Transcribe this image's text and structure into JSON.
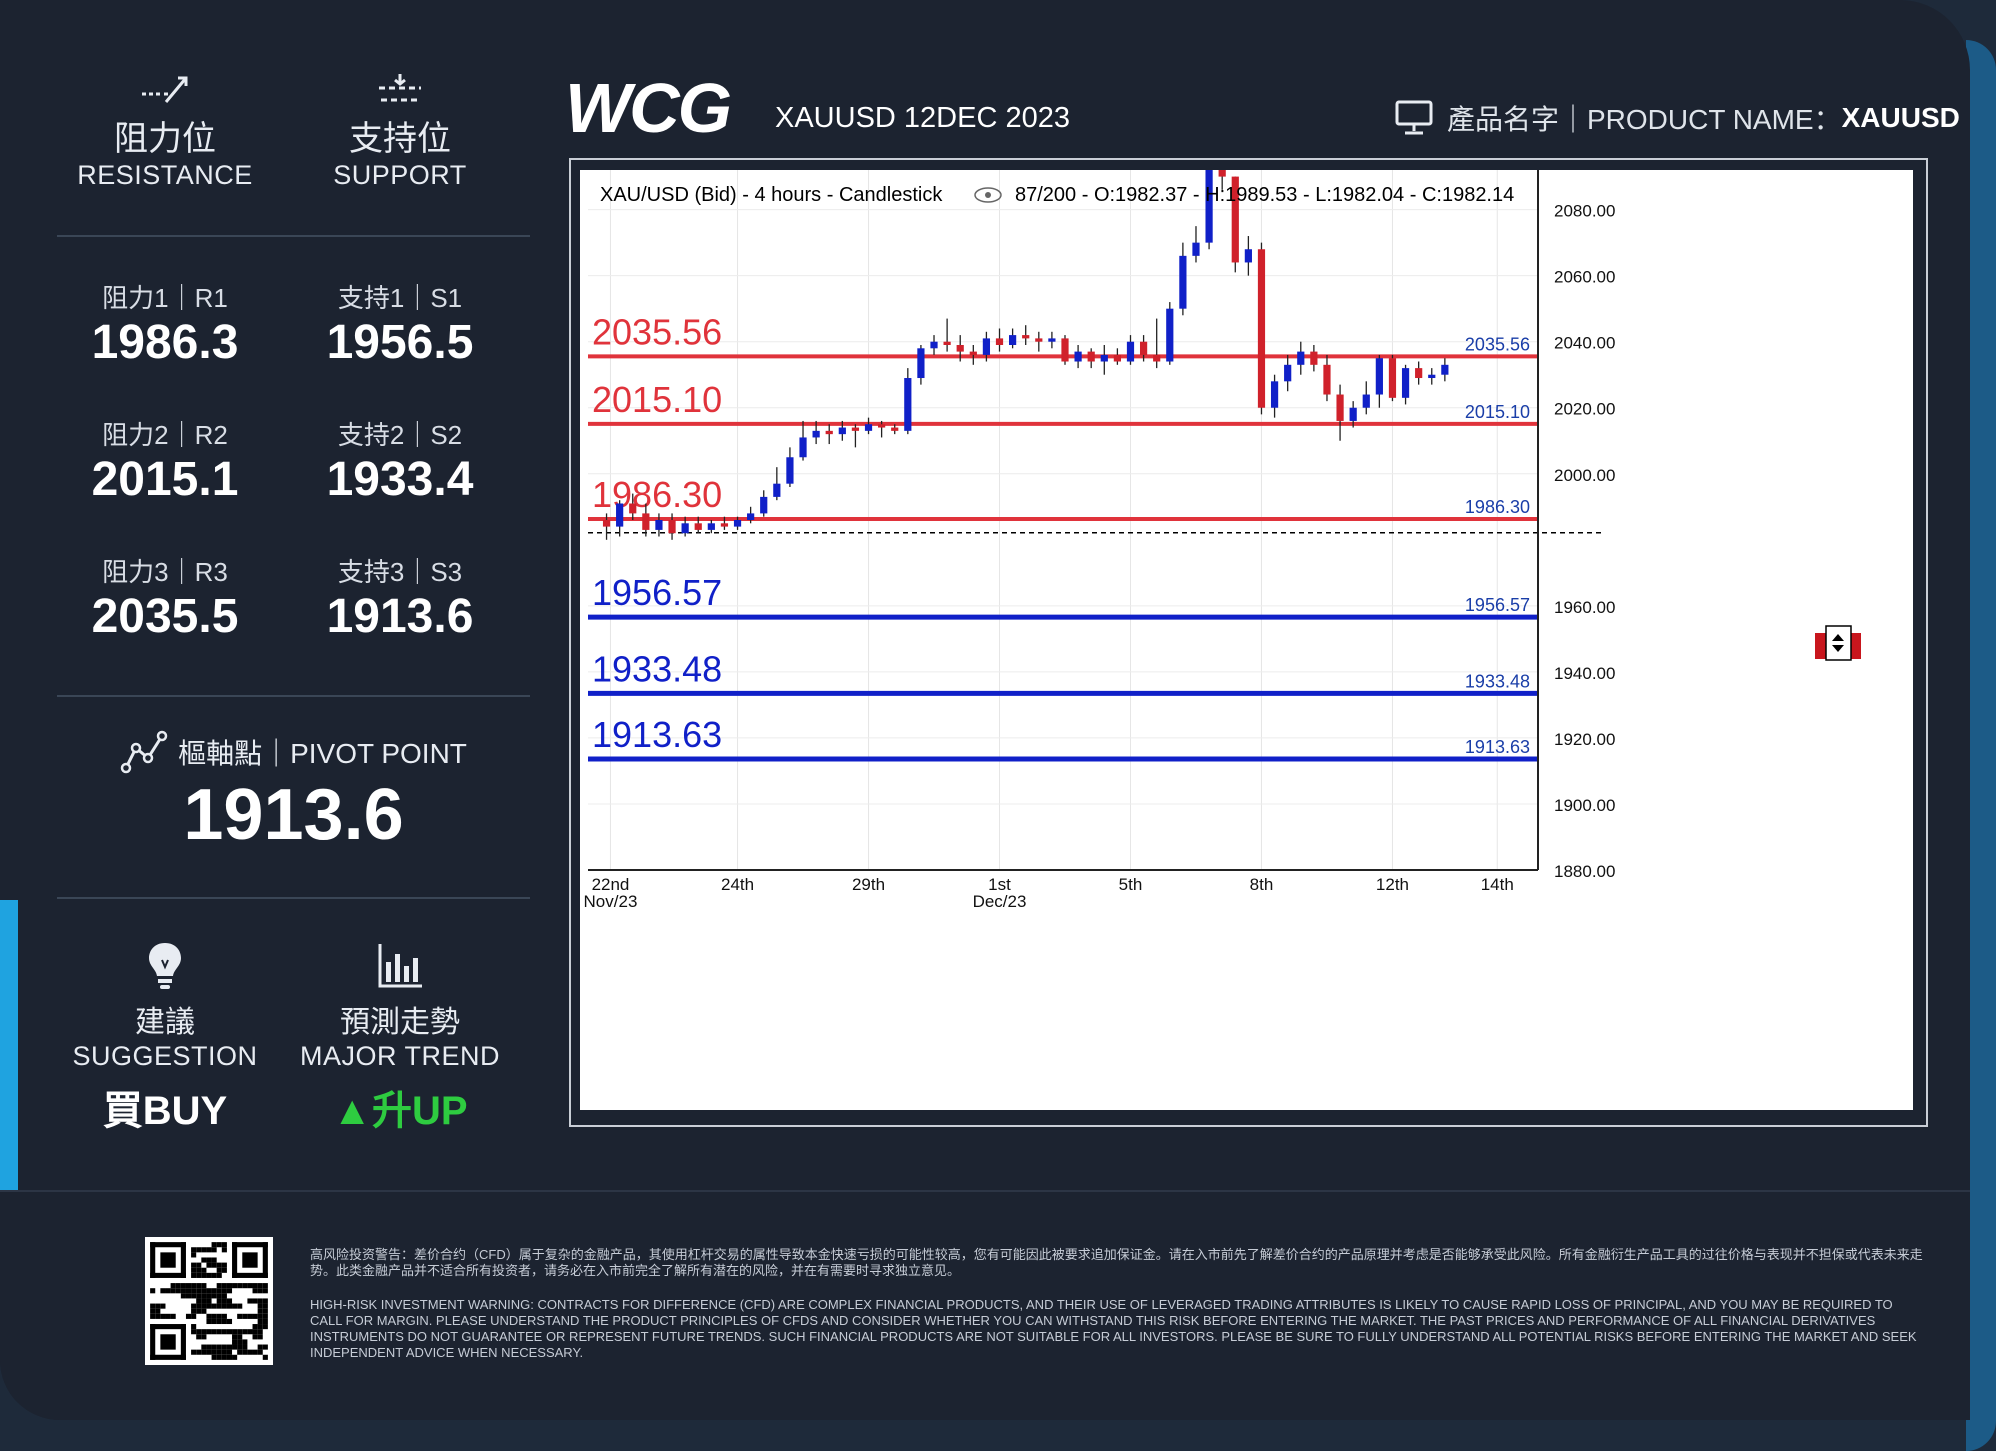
{
  "brand": {
    "logo": "WCG"
  },
  "header": {
    "title": "XAUUSD 12DEC 2023",
    "product_label": "產品名字｜PRODUCT NAME：",
    "product_value": "XAUUSD",
    "monitor_icon": "monitor-icon"
  },
  "left_panel": {
    "resistance": {
      "icon": "resistance-icon",
      "cn": "阻力位",
      "en": "RESISTANCE"
    },
    "support": {
      "icon": "support-icon",
      "cn": "支持位",
      "en": "SUPPORT"
    },
    "levels": [
      {
        "r_label": "阻力1｜R1",
        "r_value": "1986.3",
        "s_label": "支持1｜S1",
        "s_value": "1956.5"
      },
      {
        "r_label": "阻力2｜R2",
        "r_value": "2015.1",
        "s_label": "支持2｜S2",
        "s_value": "1933.4"
      },
      {
        "r_label": "阻力3｜R3",
        "r_value": "2035.5",
        "s_label": "支持3｜S3",
        "s_value": "1913.6"
      }
    ],
    "pivot": {
      "icon": "pivot-chart-icon",
      "label": "樞軸點｜PIVOT POINT",
      "value": "1913.6"
    },
    "suggestion": {
      "icon": "lightbulb-icon",
      "cn": "建議",
      "en": "SUGGESTION",
      "value": "買BUY"
    },
    "trend": {
      "icon": "bar-chart-icon",
      "cn": "預測走勢",
      "en": "MAJOR TREND",
      "value": "▲升UP",
      "color": "#2ecc40"
    }
  },
  "chart_data": {
    "type": "candlestick",
    "title": "XAU/USD (Bid) - 4 hours - Candlestick",
    "info": "87/200 - O:1982.37 - H:1989.53 - L:1982.04 - C:1982.14",
    "ylim": [
      1880,
      2092
    ],
    "yticks": [
      "2080.00",
      "2060.00",
      "2040.00",
      "2020.00",
      "2000.00",
      "1960.00",
      "1940.00",
      "1920.00",
      "1900.00",
      "1880.00"
    ],
    "x_ticks": [
      {
        "label": "22nd",
        "sub": "Nov/23",
        "idx": 0.3
      },
      {
        "label": "24th",
        "sub": "",
        "idx": 10
      },
      {
        "label": "29th",
        "sub": "",
        "idx": 20
      },
      {
        "label": "1st",
        "sub": "Dec/23",
        "idx": 30
      },
      {
        "label": "5th",
        "sub": "",
        "idx": 40
      },
      {
        "label": "8th",
        "sub": "",
        "idx": 50
      },
      {
        "label": "12th",
        "sub": "",
        "idx": 60
      },
      {
        "label": "14th",
        "sub": "",
        "idx": 68
      }
    ],
    "resistance_lines": [
      {
        "value": 2035.56,
        "label": "2035.56",
        "color": "#e0333b"
      },
      {
        "value": 2015.1,
        "label": "2015.10",
        "color": "#e0333b"
      },
      {
        "value": 1986.3,
        "label": "1986.30",
        "color": "#e0333b"
      }
    ],
    "support_lines": [
      {
        "value": 1956.57,
        "label": "1956.57",
        "color": "#1020c8"
      },
      {
        "value": 1933.48,
        "label": "1933.48",
        "color": "#1020c8"
      },
      {
        "value": 1913.63,
        "label": "1913.63",
        "color": "#1020c8"
      }
    ],
    "current_price": 1982.14,
    "candles": [
      [
        1986,
        1984,
        1988,
        1980
      ],
      [
        1984,
        1991,
        1992,
        1981
      ],
      [
        1991,
        1988,
        1994,
        1986
      ],
      [
        1988,
        1983,
        1991,
        1981
      ],
      [
        1983,
        1986,
        1988,
        1981
      ],
      [
        1986,
        1982,
        1988,
        1980
      ],
      [
        1982,
        1985,
        1987,
        1981
      ],
      [
        1985,
        1983,
        1987,
        1982
      ],
      [
        1983,
        1985,
        1986,
        1982
      ],
      [
        1985,
        1984,
        1987,
        1983
      ],
      [
        1984,
        1986,
        1987,
        1983
      ],
      [
        1986,
        1988,
        1990,
        1985
      ],
      [
        1988,
        1993,
        1995,
        1987
      ],
      [
        1993,
        1997,
        2002,
        1992
      ],
      [
        1997,
        2005,
        2008,
        1996
      ],
      [
        2005,
        2011,
        2016,
        2004
      ],
      [
        2011,
        2013,
        2016,
        2009
      ],
      [
        2013,
        2012,
        2015,
        2009
      ],
      [
        2012,
        2014,
        2016,
        2010
      ],
      [
        2014,
        2013,
        2015,
        2008
      ],
      [
        2013,
        2015,
        2017,
        2012
      ],
      [
        2015,
        2014,
        2016,
        2011
      ],
      [
        2014,
        2013,
        2015,
        2012
      ],
      [
        2013,
        2029,
        2032,
        2012
      ],
      [
        2029,
        2038,
        2039,
        2027
      ],
      [
        2038,
        2040,
        2042,
        2036
      ],
      [
        2040,
        2039,
        2047,
        2037
      ],
      [
        2039,
        2037,
        2042,
        2034
      ],
      [
        2037,
        2036,
        2039,
        2033
      ],
      [
        2036,
        2041,
        2043,
        2034
      ],
      [
        2041,
        2039,
        2044,
        2037
      ],
      [
        2039,
        2042,
        2044,
        2038
      ],
      [
        2042,
        2041,
        2045,
        2039
      ],
      [
        2041,
        2040,
        2043,
        2037
      ],
      [
        2040,
        2041,
        2043,
        2038
      ],
      [
        2041,
        2034,
        2042,
        2033
      ],
      [
        2034,
        2037,
        2039,
        2032
      ],
      [
        2037,
        2034,
        2038,
        2032
      ],
      [
        2034,
        2036,
        2039,
        2030
      ],
      [
        2036,
        2034,
        2038,
        2033
      ],
      [
        2034,
        2040,
        2042,
        2033
      ],
      [
        2040,
        2036,
        2042,
        2034
      ],
      [
        2036,
        2034,
        2047,
        2032
      ],
      [
        2034,
        2050,
        2052,
        2033
      ],
      [
        2050,
        2066,
        2070,
        2048
      ],
      [
        2066,
        2070,
        2075,
        2064
      ],
      [
        2070,
        2092,
        2095,
        2068
      ],
      [
        2092,
        2090,
        2096,
        2086
      ],
      [
        2090,
        2064,
        2090,
        2061
      ],
      [
        2064,
        2068,
        2072,
        2060
      ],
      [
        2068,
        2020,
        2070,
        2018
      ],
      [
        2020,
        2028,
        2030,
        2017
      ],
      [
        2028,
        2033,
        2036,
        2025
      ],
      [
        2033,
        2037,
        2040,
        2030
      ],
      [
        2037,
        2033,
        2039,
        2031
      ],
      [
        2033,
        2024,
        2036,
        2022
      ],
      [
        2024,
        2016,
        2027,
        2010
      ],
      [
        2016,
        2020,
        2022,
        2014
      ],
      [
        2020,
        2024,
        2028,
        2018
      ],
      [
        2024,
        2035,
        2036,
        2020
      ],
      [
        2035,
        2023,
        2036,
        2022
      ],
      [
        2023,
        2032,
        2033,
        2021
      ],
      [
        2032,
        2029,
        2034,
        2027
      ],
      [
        2029,
        2030,
        2032,
        2027
      ],
      [
        2030,
        2033,
        2035,
        2028
      ]
    ]
  },
  "footer": {
    "qr_icon": "qr-code-icon",
    "disclaimer_cn": "高风险投资警告：差价合约（CFD）属于复杂的金融产品，其使用杠杆交易的属性导致本金快速亏损的可能性较高，您有可能因此被要求追加保证金。请在入市前先了解差价合约的产品原理并考虑是否能够承受此风险。所有金融衍生产品工具的过往价格与表现并不担保或代表未来走势。此类金融产品并不适合所有投资者，请务必在入市前完全了解所有潜在的风险，并在有需要时寻求独立意见。",
    "disclaimer_en": "HIGH-RISK INVESTMENT WARNING: CONTRACTS FOR DIFFERENCE (CFD) ARE COMPLEX FINANCIAL PRODUCTS, AND THEIR USE OF LEVERAGED TRADING ATTRIBUTES IS LIKELY TO CAUSE RAPID LOSS OF PRINCIPAL, AND YOU MAY BE REQUIRED TO CALL FOR MARGIN. PLEASE UNDERSTAND THE PRODUCT PRINCIPLES OF CFDS AND CONSIDER WHETHER YOU CAN WITHSTAND THIS RISK BEFORE ENTERING THE MARKET. THE PAST PRICES AND PERFORMANCE OF ALL FINANCIAL DERIVATIVES INSTRUMENTS DO NOT GUARANTEE OR REPRESENT FUTURE TRENDS. SUCH FINANCIAL PRODUCTS ARE NOT SUITABLE FOR ALL INVESTORS. PLEASE BE SURE TO FULLY UNDERSTAND ALL POTENTIAL RISKS BEFORE ENTERING THE MARKET AND SEEK INDEPENDENT ADVICE WHEN NECESSARY."
  }
}
